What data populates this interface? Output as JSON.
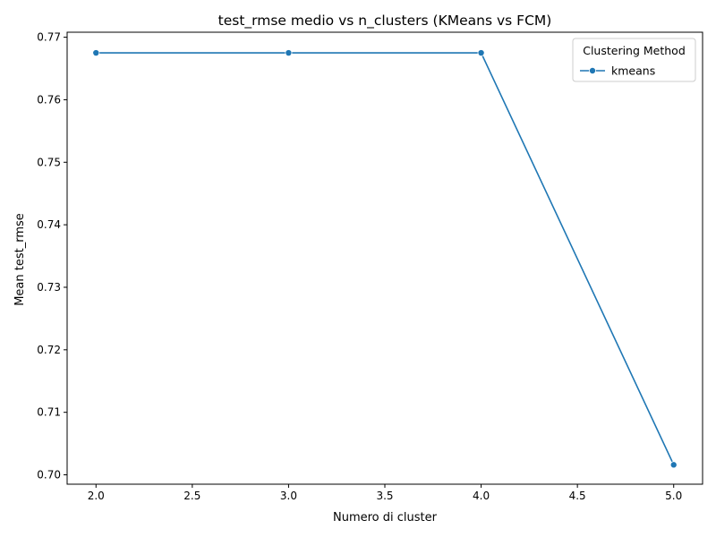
{
  "chart_data": {
    "type": "line",
    "title": "test_rmse medio vs n_clusters (KMeans vs FCM)",
    "xlabel": "Numero di cluster",
    "ylabel": "Mean test_rmse",
    "xlim": [
      1.85,
      5.15
    ],
    "ylim": [
      0.6985,
      0.7708
    ],
    "xticks": [
      2.0,
      2.5,
      3.0,
      3.5,
      4.0,
      4.5,
      5.0
    ],
    "xtick_labels": [
      "2.0",
      "2.5",
      "3.0",
      "3.5",
      "4.0",
      "4.5",
      "5.0"
    ],
    "yticks": [
      0.7,
      0.71,
      0.72,
      0.73,
      0.74,
      0.75,
      0.76,
      0.77
    ],
    "ytick_labels": [
      "0.70",
      "0.71",
      "0.72",
      "0.73",
      "0.74",
      "0.75",
      "0.76",
      "0.77"
    ],
    "grid": false,
    "legend": {
      "title": "Clustering Method",
      "position": "top-right"
    },
    "series": [
      {
        "name": "kmeans",
        "color": "#1f77b4",
        "marker": "circle",
        "x": [
          2.0,
          3.0,
          4.0,
          5.0
        ],
        "y": [
          0.7675,
          0.7675,
          0.7675,
          0.7016
        ]
      }
    ]
  }
}
